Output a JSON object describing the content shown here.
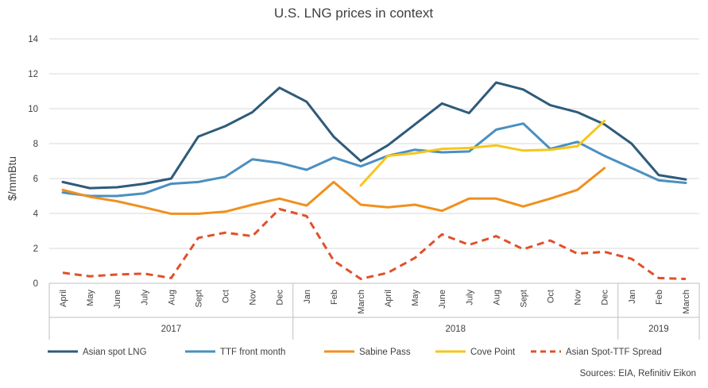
{
  "chart_data": {
    "type": "line",
    "title": "U.S. LNG prices in context",
    "ylabel": "$/mmBtu",
    "xlabel": "",
    "ylim": [
      0,
      14
    ],
    "yticks": [
      0,
      2,
      4,
      6,
      8,
      10,
      12,
      14
    ],
    "grid": true,
    "legend_position": "bottom",
    "categories": [
      "April",
      "May",
      "June",
      "July",
      "Aug",
      "Sept",
      "Oct",
      "Nov",
      "Dec",
      "Jan",
      "Feb",
      "March",
      "April",
      "May",
      "June",
      "July",
      "Aug",
      "Sept",
      "Oct",
      "Nov",
      "Dec",
      "Jan",
      "Feb",
      "March"
    ],
    "year_groups": [
      {
        "label": "2017",
        "start": 0,
        "end": 8
      },
      {
        "label": "2018",
        "start": 9,
        "end": 20
      },
      {
        "label": "2019",
        "start": 21,
        "end": 23
      }
    ],
    "series": [
      {
        "name": "Asian spot LNG",
        "color": "#2e5b7a",
        "dash": false,
        "values": [
          5.8,
          5.45,
          5.5,
          5.7,
          6.0,
          8.4,
          9.0,
          9.8,
          11.2,
          10.4,
          8.4,
          7.0,
          7.9,
          9.1,
          10.3,
          9.75,
          11.5,
          11.1,
          10.2,
          9.8,
          9.1,
          8.0,
          6.2,
          5.95
        ]
      },
      {
        "name": "TTF front month",
        "color": "#4a8fc1",
        "dash": false,
        "values": [
          5.2,
          5.0,
          5.0,
          5.15,
          5.7,
          5.8,
          6.1,
          7.1,
          6.9,
          6.5,
          7.2,
          6.7,
          7.3,
          7.65,
          7.5,
          7.55,
          8.8,
          9.15,
          7.7,
          8.1,
          7.3,
          6.6,
          5.9,
          5.75
        ]
      },
      {
        "name": "Sabine Pass",
        "color": "#f0901e",
        "dash": false,
        "values": [
          5.35,
          4.95,
          4.7,
          4.35,
          3.98,
          3.98,
          4.1,
          4.5,
          4.85,
          4.45,
          5.8,
          4.5,
          4.35,
          4.5,
          4.15,
          4.85,
          4.85,
          4.4,
          4.85,
          5.35,
          6.6,
          null,
          null,
          null
        ]
      },
      {
        "name": "Cove Point",
        "color": "#f7c61b",
        "dash": false,
        "values": [
          null,
          null,
          null,
          null,
          null,
          null,
          null,
          null,
          null,
          null,
          null,
          5.6,
          7.3,
          7.45,
          7.7,
          7.75,
          7.9,
          7.6,
          7.65,
          7.85,
          9.3,
          null,
          null,
          null
        ]
      },
      {
        "name": "Asian Spot-TTF Spread",
        "color": "#e0512a",
        "dash": true,
        "values": [
          0.6,
          0.4,
          0.5,
          0.55,
          0.3,
          2.6,
          2.9,
          2.7,
          4.25,
          3.85,
          1.3,
          0.25,
          0.6,
          1.45,
          2.8,
          2.2,
          2.7,
          1.95,
          2.45,
          1.7,
          1.8,
          1.4,
          0.3,
          0.25
        ]
      }
    ],
    "source_note": "Sources: EIA, Refinitiv Eikon"
  }
}
